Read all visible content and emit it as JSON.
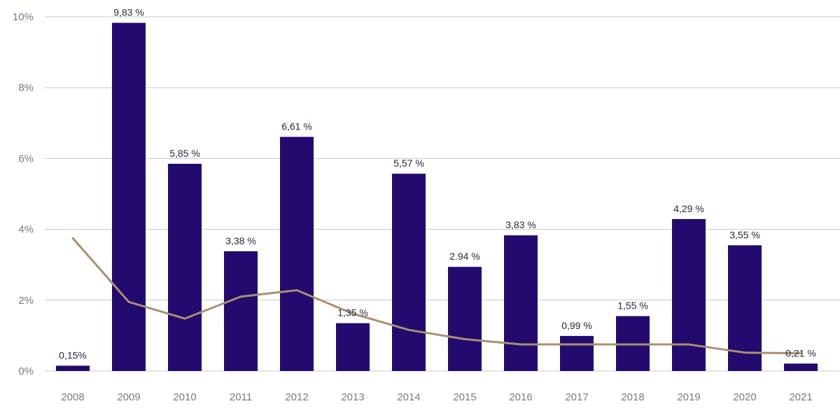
{
  "chart_data": {
    "type": "bar",
    "categories": [
      "2008",
      "2009",
      "2010",
      "2011",
      "2012",
      "2013",
      "2014",
      "2015",
      "2016",
      "2017",
      "2018",
      "2019",
      "2020",
      "2021"
    ],
    "series": [
      {
        "type": "bar",
        "values": [
          0.15,
          9.83,
          5.85,
          3.38,
          6.61,
          1.35,
          5.57,
          2.94,
          3.83,
          0.99,
          1.55,
          4.29,
          3.55,
          0.21
        ],
        "data_labels": [
          "0,15%",
          "9,83 %",
          "5,85 %",
          "3,38 %",
          "6,61 %",
          "1,35 %",
          "5,57 %",
          "2.94 %",
          "3,83 %",
          "0,99 %",
          "1,55 %",
          "4,29 %",
          "3,55 %",
          "0,21 %"
        ],
        "color": "#230a6e"
      },
      {
        "type": "line",
        "values": [
          3.75,
          1.95,
          1.48,
          2.1,
          2.28,
          1.62,
          1.16,
          0.9,
          0.75,
          0.75,
          0.75,
          0.75,
          0.52,
          0.5
        ],
        "color": "#a89070"
      }
    ],
    "ylim": [
      0,
      10
    ],
    "yticks": [
      0,
      2,
      4,
      6,
      8,
      10
    ],
    "ytick_labels": [
      "0%",
      "2%",
      "4%",
      "6%",
      "8%",
      "10%"
    ],
    "grid": true,
    "title": "",
    "xlabel": "",
    "ylabel": ""
  }
}
